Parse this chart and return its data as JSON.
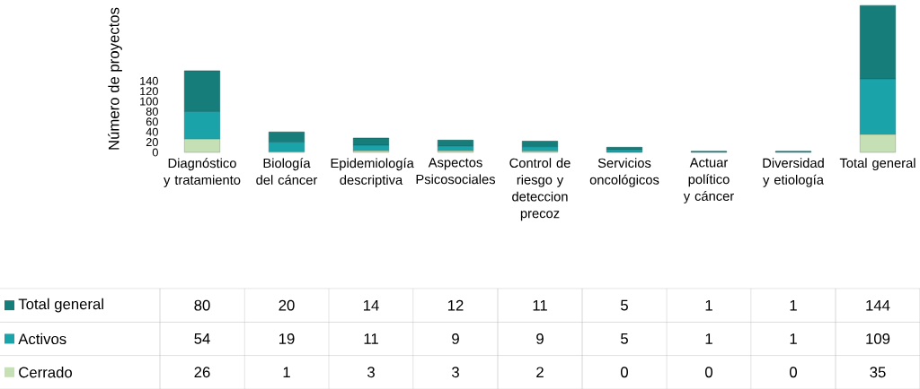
{
  "chart_data": {
    "type": "bar",
    "stacked": true,
    "ylabel": "Número de proyectos",
    "categories": [
      "Diagnóstico y tratamiento",
      "Biología del cáncer",
      "Epidemiología descriptiva",
      "Aspectos Psicosociales",
      "Control de riesgo y deteccion precoz",
      "Servicios oncológicos",
      "Actuar político y cáncer",
      "Diversidad y etiología",
      "Total general"
    ],
    "series": [
      {
        "name": "Cerrado",
        "color": "#c5e0b4",
        "values": [
          26,
          1,
          3,
          3,
          2,
          0,
          0,
          0,
          35
        ]
      },
      {
        "name": "Activos",
        "color": "#1aa3a8",
        "values": [
          54,
          19,
          11,
          9,
          9,
          5,
          1,
          1,
          109
        ]
      },
      {
        "name": "Total general",
        "color": "#177d7a",
        "values": [
          80,
          20,
          14,
          12,
          11,
          5,
          1,
          1,
          144
        ]
      }
    ],
    "ylim": [
      0,
      290
    ],
    "yticks": [
      0,
      20,
      40,
      60,
      80,
      100,
      120,
      140
    ],
    "data_labels": true,
    "legend": "bottom"
  }
}
